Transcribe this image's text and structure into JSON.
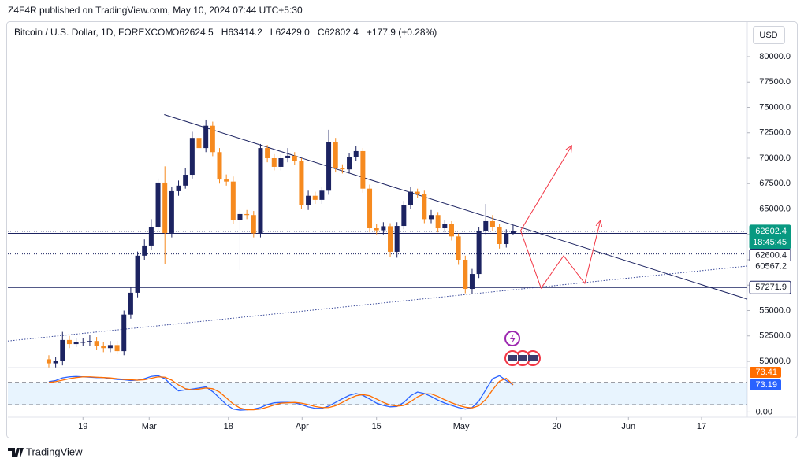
{
  "header": {
    "publisher": "Z4F4R published on TradingView.com, May 10, 2024 07:44 UTC+5:30",
    "currency": "USD",
    "footer": "TradingView"
  },
  "chart_data": {
    "type": "candlestick",
    "title": "Bitcoin / U.S. Dollar, 1D, FOREXCOM",
    "legend": [
      "O62624.5",
      "H63414.2",
      "L62429.0",
      "C62802.4",
      "+177.9 (+0.28%)"
    ],
    "up_color": "#1c2361",
    "down_color": "#f68a1f",
    "open": [
      50200,
      49800,
      50000,
      52100,
      51700,
      51900,
      51900,
      52000,
      51500,
      51300,
      51600,
      51000,
      54600,
      56750,
      60400,
      61400,
      63250,
      67600,
      62640,
      66750,
      67300,
      68370,
      72000,
      71000,
      73200,
      70600,
      67900,
      67700,
      63900,
      64500,
      64400,
      62600,
      71000,
      70000,
      69150,
      70000,
      70240,
      69700,
      65400,
      66300,
      65900,
      66800,
      71600,
      69000,
      68900,
      70100,
      70700,
      67000,
      63100,
      62900,
      63300,
      60780,
      63330,
      65400,
      66700,
      66500,
      64000,
      64400,
      63100,
      63500,
      62300,
      60000,
      57130,
      58600,
      62870,
      63800,
      63200,
      61550,
      62624.5
    ],
    "high": [
      50600,
      50400,
      52900,
      52500,
      52300,
      52300,
      52600,
      52400,
      51900,
      52000,
      52000,
      55000,
      57300,
      60800,
      62000,
      64000,
      68000,
      69200,
      67200,
      67800,
      69000,
      72600,
      72400,
      73800,
      73600,
      71000,
      68400,
      68200,
      65000,
      64900,
      64800,
      71400,
      71300,
      70400,
      70400,
      71000,
      70600,
      70000,
      66800,
      66700,
      67200,
      72800,
      72000,
      69400,
      70500,
      71200,
      71000,
      67400,
      63500,
      63700,
      63600,
      63700,
      65800,
      67200,
      67000,
      66800,
      64900,
      64700,
      63900,
      63800,
      62600,
      60400,
      59100,
      63200,
      65500,
      64400,
      63500,
      63000,
      63414.2
    ],
    "low": [
      49400,
      49400,
      49600,
      51300,
      51400,
      51500,
      51500,
      51100,
      50900,
      50900,
      50700,
      50600,
      54200,
      56300,
      60000,
      61000,
      62800,
      59600,
      62200,
      66300,
      67000,
      68000,
      70600,
      70600,
      70200,
      67500,
      67300,
      63500,
      59000,
      64000,
      62200,
      62200,
      69600,
      68800,
      68800,
      69600,
      69300,
      65000,
      64900,
      65500,
      65500,
      66400,
      68600,
      68500,
      68500,
      69700,
      66600,
      62700,
      62500,
      62500,
      60300,
      60200,
      63000,
      65000,
      66100,
      63600,
      63600,
      62700,
      62700,
      61900,
      59500,
      56700,
      56600,
      58200,
      62500,
      62800,
      61100,
      61200,
      62429
    ],
    "close": [
      49800,
      50000,
      52100,
      51700,
      51900,
      51900,
      52000,
      51500,
      51300,
      51600,
      51000,
      54600,
      56750,
      60400,
      61400,
      63250,
      67600,
      62640,
      66750,
      67300,
      68370,
      72000,
      71000,
      73200,
      70600,
      67900,
      67700,
      63900,
      64500,
      64400,
      62600,
      71000,
      70000,
      69150,
      70000,
      70240,
      69700,
      65400,
      66300,
      65900,
      66800,
      71600,
      69000,
      68900,
      70100,
      70700,
      67000,
      63100,
      62900,
      63300,
      60780,
      63330,
      65400,
      66700,
      66500,
      64000,
      64400,
      63100,
      63500,
      62300,
      60000,
      57130,
      58600,
      62870,
      63800,
      63200,
      61550,
      62600,
      62802.4
    ],
    "xlim": [
      -6,
      102.3
    ],
    "xticks": [
      {
        "value": 5,
        "label": "19"
      },
      {
        "value": 14.7,
        "label": "Mar"
      },
      {
        "value": 26.3,
        "label": "18"
      },
      {
        "value": 37.1,
        "label": "Apr"
      },
      {
        "value": 48,
        "label": "15"
      },
      {
        "value": 60.4,
        "label": "May"
      },
      {
        "value": 74.4,
        "label": "20"
      },
      {
        "value": 84.9,
        "label": "Jun"
      },
      {
        "value": 95.6,
        "label": "17"
      }
    ],
    "ylim": [
      49380,
      83410
    ],
    "yticks": [
      {
        "value": 50000,
        "label": "50000.0"
      },
      {
        "value": 52500,
        "label": "52500.0"
      },
      {
        "value": 55000,
        "label": "55000.0"
      },
      {
        "value": 57500,
        "label": "57500.0"
      },
      {
        "value": 60000,
        "label": "60000.0"
      },
      {
        "value": 62500,
        "label": "62500.0"
      },
      {
        "value": 65000,
        "label": "65000.0"
      },
      {
        "value": 67500,
        "label": "67500.0"
      },
      {
        "value": 70000,
        "label": "70000.0"
      },
      {
        "value": 72500,
        "label": "72500.0"
      },
      {
        "value": 75000,
        "label": "75000.0"
      },
      {
        "value": 77500,
        "label": "77500.0"
      },
      {
        "value": 80000,
        "label": "80000.0"
      }
    ],
    "price_lines": [
      {
        "value": 62802.4,
        "label": "62802.4",
        "style": "last"
      },
      {
        "value": 62600.4,
        "label": "62600.4",
        "style": "solid"
      },
      {
        "value": 60567.2,
        "label": "60567.2",
        "style": "dotted"
      },
      {
        "value": 57271.9,
        "label": "57271.9",
        "style": "solid"
      }
    ],
    "countdown": "18:45:45",
    "trendlines": [
      {
        "color": "#1c2361",
        "style": "solid",
        "x": [
          16.9,
          102.3
        ],
        "y": [
          74300,
          56124
        ]
      },
      {
        "color": "#3a4a9a",
        "style": "dotted",
        "x": [
          -6,
          102.3
        ],
        "y": [
          52000,
          59380
        ]
      },
      {
        "color": "#f23645",
        "style": "solid",
        "x": [
          69.1,
          76.6
        ],
        "y": [
          62870,
          71240
        ]
      },
      {
        "color": "#f23645",
        "style": "solid",
        "x": [
          69.1,
          72.1,
          75.4,
          78.5,
          80.8
        ],
        "y": [
          62870,
          57210,
          60390,
          57670,
          63880
        ]
      }
    ],
    "indicator": {
      "ylim": [
        -14,
        120
      ],
      "bands": [
        20,
        80
      ],
      "yticks": [
        {
          "value": 0,
          "label": "0.00"
        }
      ],
      "series": [
        {
          "color": "#2962ff",
          "values": [
            82,
            85,
            92,
            95,
            96,
            95,
            94,
            93,
            93,
            90,
            88,
            87,
            85,
            86,
            90,
            96,
            98,
            90,
            72,
            57,
            60,
            62,
            65,
            68,
            55,
            38,
            20,
            8,
            5,
            6,
            8,
            12,
            20,
            25,
            26,
            26,
            25,
            20,
            14,
            10,
            10,
            16,
            26,
            36,
            45,
            50,
            45,
            35,
            24,
            18,
            14,
            15,
            26,
            44,
            54,
            50,
            42,
            32,
            24,
            18,
            12,
            8,
            12,
            30,
            60,
            90,
            98,
            85,
            73.19
          ],
          "label": "73.19"
        },
        {
          "color": "#ff6d00",
          "values": [
            80,
            82,
            86,
            90,
            93,
            95,
            95,
            94,
            93,
            92,
            90,
            88,
            87,
            86,
            87,
            91,
            95,
            94,
            86,
            73,
            63,
            60,
            62,
            65,
            63,
            54,
            38,
            22,
            11,
            6,
            6,
            8,
            13,
            19,
            24,
            25,
            26,
            24,
            20,
            15,
            12,
            12,
            17,
            26,
            36,
            44,
            47,
            44,
            35,
            26,
            19,
            16,
            18,
            28,
            41,
            49,
            49,
            42,
            33,
            25,
            18,
            13,
            11,
            17,
            34,
            60,
            83,
            91,
            73.41
          ],
          "label": "73.41"
        }
      ]
    }
  }
}
